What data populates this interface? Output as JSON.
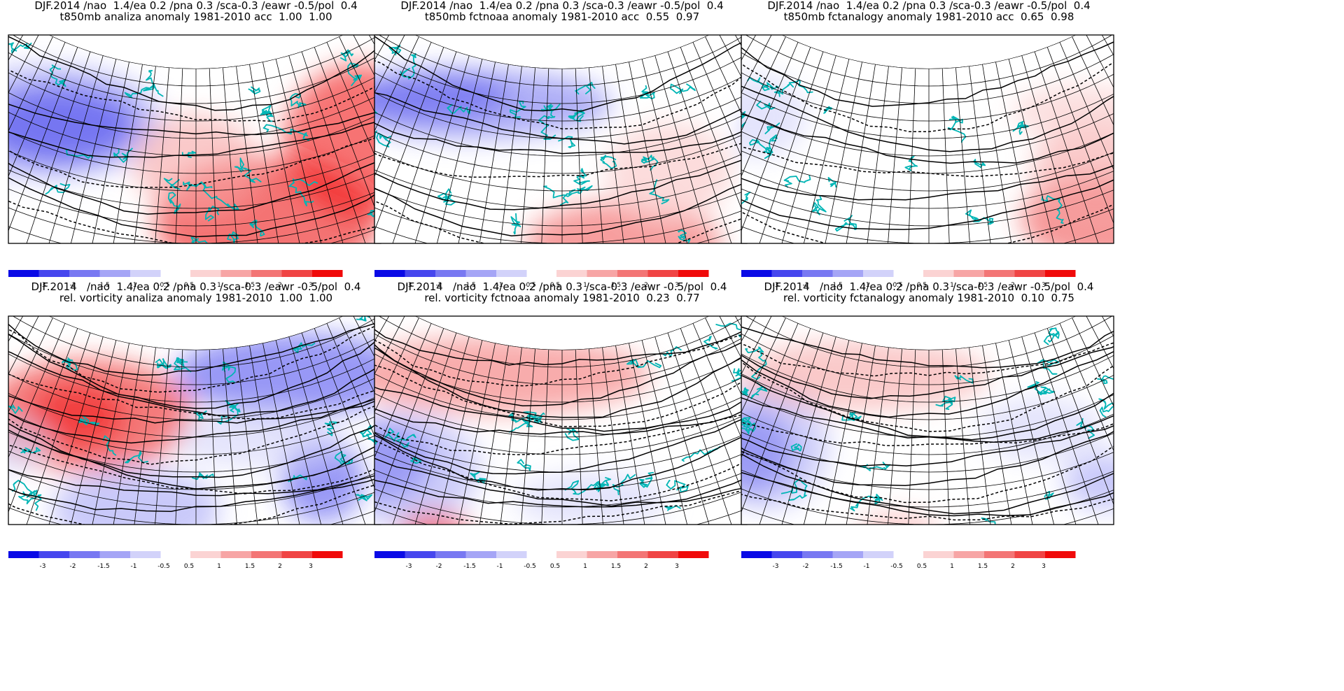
{
  "panels": [
    {
      "header": "DJF.2014 /nao  1.4/ea 0.2 /pna 0.3 /sca-0.3 /eawr -0.5/pol  0.4",
      "subtitle": "t850mb analiza anomaly 1981-2010 acc  1.00  1.00",
      "field": "temperature",
      "variant": 0
    },
    {
      "header": "DJF.2014 /nao  1.4/ea 0.2 /pna 0.3 /sca-0.3 /eawr -0.5/pol  0.4",
      "subtitle": "t850mb fctnoaa anomaly 1981-2010 acc  0.55  0.97",
      "field": "temperature",
      "variant": 1
    },
    {
      "header": "DJF.2014 /nao  1.4/ea 0.2 /pna 0.3 /sca-0.3 /eawr -0.5/pol  0.4",
      "subtitle": "t850mb fctanalogy anomaly 1981-2010 acc  0.65  0.98",
      "field": "temperature",
      "variant": 2
    },
    {
      "header": "DJF.2014   /nao  1.4/ea 0.2 /pna 0.3 /sca-0.3 /eawr -0.5/pol  0.4",
      "subtitle": "rel. vorticity analiza anomaly 1981-2010  1.00  1.00",
      "field": "vorticity",
      "variant": 0
    },
    {
      "header": "DJF.2014   /nao  1.4/ea 0.2 /pna 0.3 /sca-0.3 /eawr -0.5/pol  0.4",
      "subtitle": "rel. vorticity fctnoaa anomaly 1981-2010  0.23  0.77",
      "field": "vorticity",
      "variant": 1
    },
    {
      "header": "DJF.2014   /nao  1.4/ea 0.2 /pna 0.3 /sca-0.3 /eawr -0.5/pol  0.4",
      "subtitle": "rel. vorticity fctanalogy anomaly 1981-2010  0.10  0.75",
      "field": "vorticity",
      "variant": 2
    }
  ],
  "colorbar": {
    "labels": [
      "-3",
      "-2",
      "-1.5",
      "-1",
      "-0.5",
      "0.5",
      "1",
      "1.5",
      "2",
      "3"
    ],
    "negative_colors": [
      "#0a0ae6",
      "#4646ee",
      "#7878f2",
      "#a5a5f6",
      "#d2d2fa"
    ],
    "positive_colors": [
      "#fbd3d3",
      "#f7a5a5",
      "#f37575",
      "#f04444",
      "#f00a0a"
    ]
  },
  "coastline_color": "#00b5b5"
}
